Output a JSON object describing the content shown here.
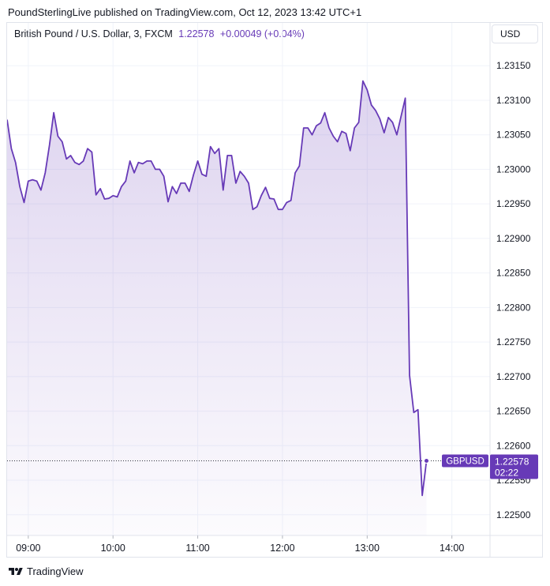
{
  "header": {
    "publisher": "PoundSterlingLive published on TradingView.com, Oct 12, 2023 13:42 UTC+1"
  },
  "legend": {
    "symbol": "British Pound / U.S. Dollar, 3, FXCM",
    "last": "1.22578",
    "change": "+0.00049 (+0.04%)"
  },
  "currency_button": "USD",
  "price_label": {
    "ticker": "GBPUSD",
    "price": "1.22578",
    "countdown": "02:22"
  },
  "footer": {
    "brand": "TradingView"
  },
  "colors": {
    "line": "#673ab7",
    "fill_top": "#673ab7",
    "grid": "#f0f3fa",
    "axis_text": "#131722"
  },
  "chart_data": {
    "type": "area",
    "x_label_times": [
      "09:00",
      "10:00",
      "11:00",
      "12:00",
      "13:00",
      "14:00"
    ],
    "y_ticks": [
      "1.22500",
      "1.22550",
      "1.22600",
      "1.22650",
      "1.22700",
      "1.22750",
      "1.22800",
      "1.22850",
      "1.22900",
      "1.22950",
      "1.23000",
      "1.23050",
      "1.23100",
      "1.23150"
    ],
    "ylim": [
      1.2247,
      1.2318
    ],
    "xlim_hours": [
      8.75,
      14.45
    ],
    "grid": true,
    "series": [
      {
        "x": [
          8.75,
          8.8,
          8.85,
          8.9,
          8.95,
          9.0,
          9.05,
          9.1,
          9.15,
          9.2,
          9.25,
          9.3,
          9.35,
          9.4,
          9.45,
          9.5,
          9.55,
          9.6,
          9.65,
          9.7,
          9.75,
          9.8,
          9.85,
          9.9,
          9.95,
          10.0,
          10.05,
          10.1,
          10.15,
          10.2,
          10.25,
          10.3,
          10.35,
          10.4,
          10.45,
          10.5,
          10.55,
          10.6,
          10.65,
          10.7,
          10.75,
          10.8,
          10.85,
          10.9,
          10.95,
          11.0,
          11.05,
          11.1,
          11.15,
          11.2,
          11.25,
          11.3,
          11.35,
          11.4,
          11.45,
          11.5,
          11.55,
          11.6,
          11.65,
          11.7,
          11.75,
          11.8,
          11.85,
          11.9,
          11.95,
          12.0,
          12.05,
          12.1,
          12.15,
          12.2,
          12.25,
          12.3,
          12.35,
          12.4,
          12.45,
          12.5,
          12.55,
          12.6,
          12.65,
          12.7,
          12.75,
          12.8,
          12.85,
          12.9,
          12.95,
          13.0,
          13.05,
          13.1,
          13.15,
          13.2,
          13.25,
          13.3,
          13.35,
          13.4,
          13.45,
          13.5,
          13.55,
          13.6,
          13.65,
          13.7
        ],
        "y": [
          1.23072,
          1.2303,
          1.2301,
          1.22975,
          1.22952,
          1.22983,
          1.22985,
          1.22983,
          1.2297,
          1.22995,
          1.23035,
          1.23082,
          1.23048,
          1.2304,
          1.23015,
          1.2302,
          1.2301,
          1.23007,
          1.23012,
          1.2303,
          1.23025,
          1.22963,
          1.22972,
          1.22957,
          1.22958,
          1.22962,
          1.2296,
          1.22975,
          1.22983,
          1.23012,
          1.22995,
          1.2301,
          1.23008,
          1.23012,
          1.23012,
          1.23,
          1.23,
          1.2299,
          1.22953,
          1.22975,
          1.22965,
          1.2298,
          1.2298,
          1.22968,
          1.22992,
          1.23012,
          1.22993,
          1.2299,
          1.23033,
          1.23023,
          1.2303,
          1.2297,
          1.2302,
          1.2302,
          1.2298,
          1.22997,
          1.2299,
          1.2298,
          1.22942,
          1.22946,
          1.22962,
          1.22974,
          1.22958,
          1.22957,
          1.22942,
          1.22942,
          1.22952,
          1.22955,
          1.22995,
          1.23005,
          1.2306,
          1.2306,
          1.2305,
          1.23063,
          1.23067,
          1.23082,
          1.2306,
          1.23048,
          1.2304,
          1.23055,
          1.23052,
          1.23027,
          1.2306,
          1.23068,
          1.23128,
          1.23115,
          1.23093,
          1.23085,
          1.23073,
          1.23053,
          1.23075,
          1.23068,
          1.2305,
          1.23077,
          1.23103,
          1.22702,
          1.22648,
          1.22652,
          1.22528,
          1.22578
        ]
      }
    ]
  }
}
